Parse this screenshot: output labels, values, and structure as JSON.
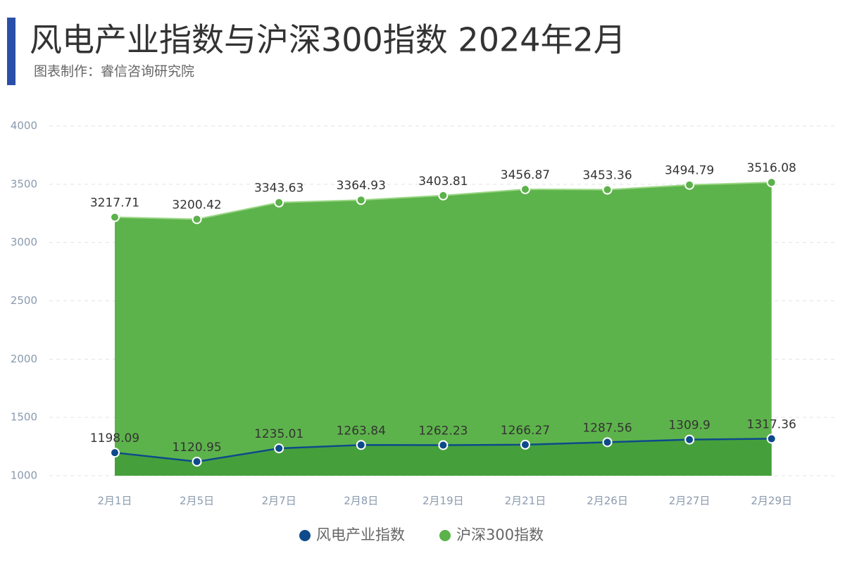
{
  "chart_data": {
    "type": "area",
    "title": "风电产业指数与沪深300指数 2024年2月",
    "subtitle": "图表制作：睿信咨询研究院",
    "categories": [
      "2月1日",
      "2月5日",
      "2月7日",
      "2月8日",
      "2月19日",
      "2月21日",
      "2月26日",
      "2月27日",
      "2月29日"
    ],
    "series": [
      {
        "name": "风电产业指数",
        "color": "#0d4a8a",
        "fill": "#45a03c",
        "values": [
          1198.09,
          1120.95,
          1235.01,
          1263.84,
          1262.23,
          1266.27,
          1287.56,
          1309.9,
          1317.36
        ]
      },
      {
        "name": "沪深300指数",
        "color": "#5cb24a",
        "fill": "#5db34b",
        "values": [
          3217.71,
          3200.42,
          3343.63,
          3364.93,
          3403.81,
          3456.87,
          3453.36,
          3494.79,
          3516.08
        ]
      }
    ],
    "ylim": [
      1000,
      4000
    ],
    "yticks": [
      1000,
      1500,
      2000,
      2500,
      3000,
      3500,
      4000
    ],
    "grid": true
  }
}
